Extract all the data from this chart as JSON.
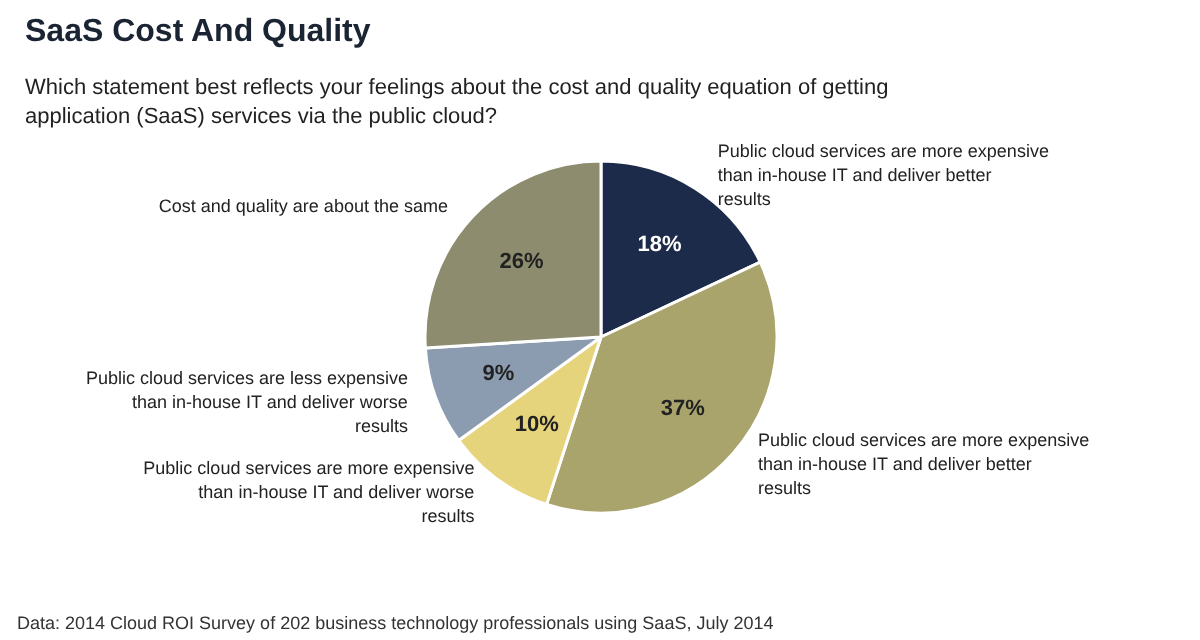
{
  "chart_data": {
    "type": "pie",
    "title": "SaaS Cost And Quality",
    "subtitle": "Which statement best reflects your feelings about the cost and quality equation of getting application (SaaS) services via the public cloud?",
    "categories": [
      "Public cloud services are more expensive than in-house IT and deliver better results",
      "Public cloud services are more expensive than in-house IT and deliver better results",
      "Public cloud services are more expensive than in-house IT and deliver worse results",
      "Public cloud services are less expensive than in-house IT and deliver worse results",
      "Cost and quality are about the same"
    ],
    "values": [
      18,
      37,
      10,
      9,
      26
    ],
    "colors": [
      "#1d2b4a",
      "#a9a46c",
      "#e6d47c",
      "#8c9cb0",
      "#8d8c6e"
    ],
    "value_labels": [
      "18%",
      "37%",
      "10%",
      "9%",
      "26%"
    ],
    "annotations": [
      "Data: 2014 Cloud ROI Survey of 202 business technology professionals using SaaS, July 2014"
    ]
  }
}
